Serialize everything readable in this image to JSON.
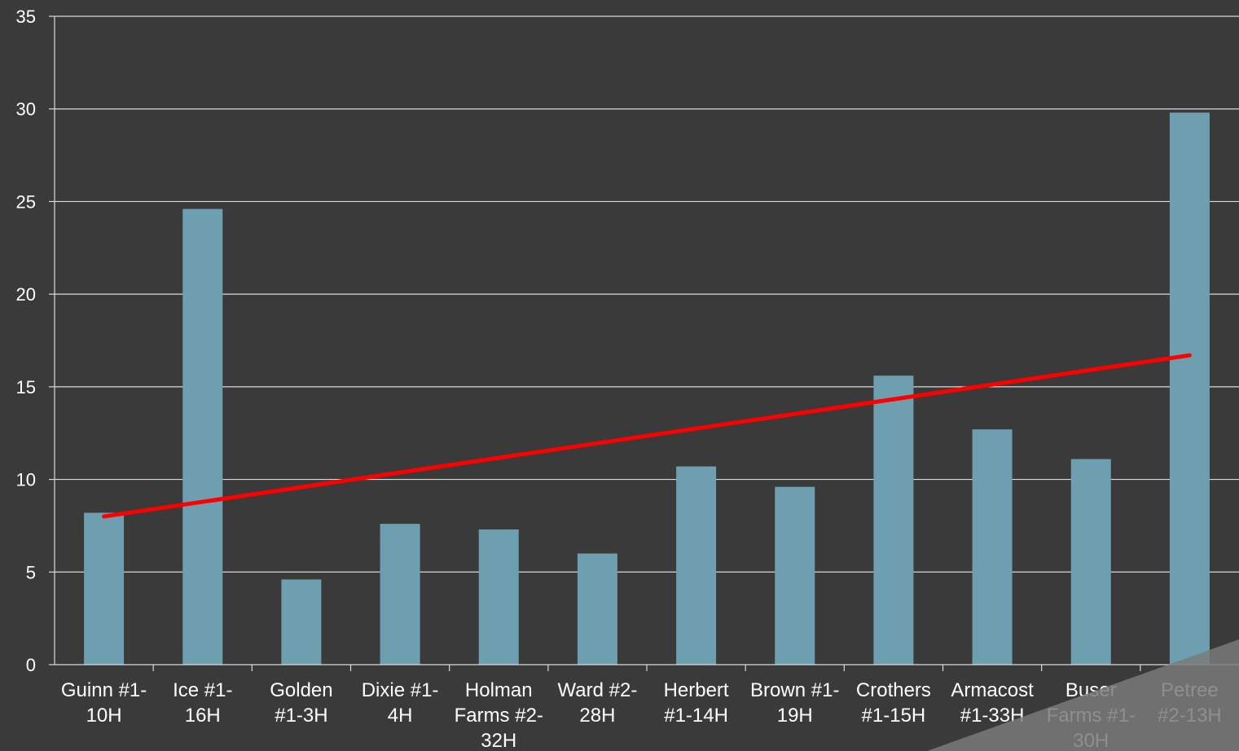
{
  "chart_data": {
    "type": "bar",
    "title": "",
    "xlabel": "",
    "ylabel": "",
    "ylim": [
      0,
      35
    ],
    "yticks": [
      0,
      5,
      10,
      15,
      20,
      25,
      30,
      35
    ],
    "grid": true,
    "categories": [
      [
        "Guinn #1-",
        "10H"
      ],
      [
        "Ice #1-",
        "16H"
      ],
      [
        "Golden",
        "#1-3H"
      ],
      [
        "Dixie #1-",
        "4H"
      ],
      [
        "Holman",
        "Farms #2-",
        "32H"
      ],
      [
        "Ward #2-",
        "28H"
      ],
      [
        "Herbert",
        "#1-14H"
      ],
      [
        "Brown #1-",
        "19H"
      ],
      [
        "Crothers",
        "#1-15H"
      ],
      [
        "Armacost",
        "#1-33H"
      ],
      [
        "Buser",
        "Farms #1-",
        "30H"
      ],
      [
        "Petree",
        "#2-13H"
      ]
    ],
    "values": [
      8.2,
      24.6,
      4.6,
      7.6,
      7.3,
      6.0,
      10.7,
      9.6,
      15.6,
      12.7,
      11.1,
      29.8
    ],
    "trendline": {
      "start": 8.0,
      "end": 16.7
    },
    "colors": {
      "background": "#3a3a3a",
      "bar": "#6e9fb0",
      "trend": "#ff0000",
      "grid": "#d9d9d9",
      "text": "#ffffff"
    }
  }
}
